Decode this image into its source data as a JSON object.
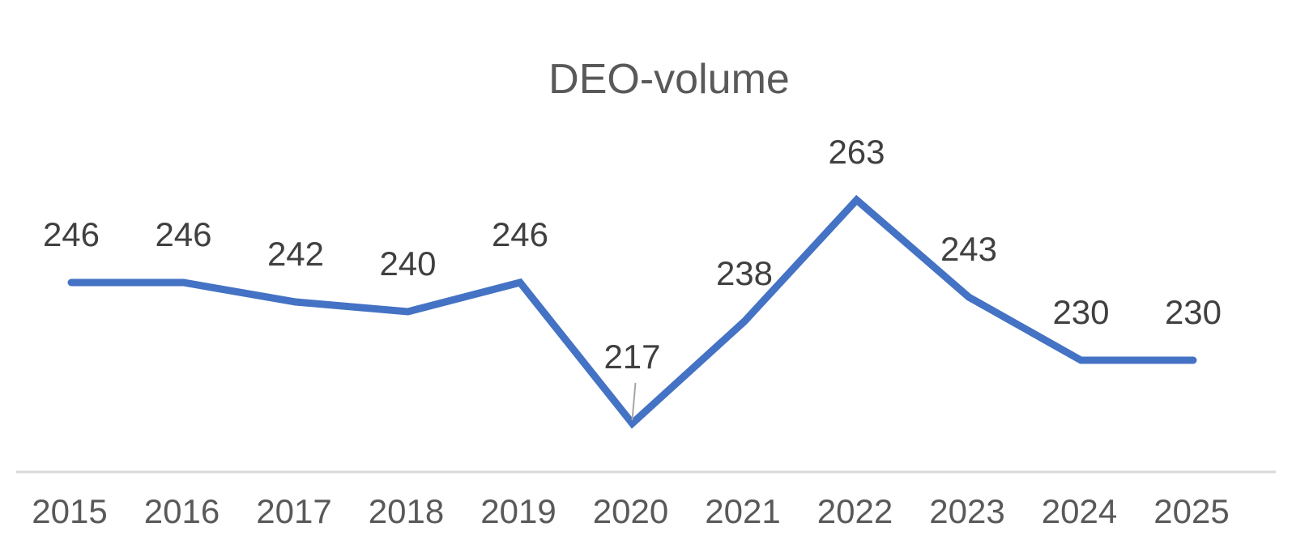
{
  "chart_data": {
    "type": "line",
    "title": "DEO-volume",
    "xlabel": "",
    "ylabel": "",
    "categories": [
      "2015",
      "2016",
      "2017",
      "2018",
      "2019",
      "2020",
      "2021",
      "2022",
      "2023",
      "2024",
      "2025"
    ],
    "series": [
      {
        "values": [
          246,
          246,
          242,
          240,
          246,
          217,
          238,
          263,
          243,
          230,
          230
        ],
        "color": "#4472C4"
      }
    ],
    "data_labels": [
      "246",
      "246",
      "242",
      "240",
      "246",
      "217",
      "238",
      "263",
      "243",
      "230",
      "230"
    ],
    "ylim": [
      207,
      280
    ],
    "grid": false,
    "y_axis_visible": false,
    "axis_color": "#D9D9D9"
  }
}
